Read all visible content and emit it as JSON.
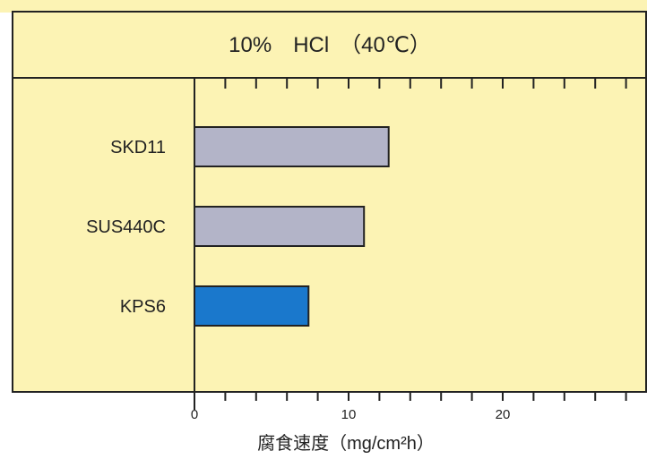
{
  "chart_data": {
    "type": "bar",
    "orientation": "horizontal",
    "title": "10%　HCl　（40℃）",
    "categories": [
      "SKD11",
      "SUS440C",
      "KPS6"
    ],
    "values": [
      12.6,
      11.0,
      7.4
    ],
    "xlabel": "腐食速度（mg/cm²h）",
    "ylabel": "",
    "xlim": [
      0,
      29
    ],
    "xticks": [
      0,
      10,
      20
    ],
    "minor_tick_step": 2,
    "grid": false,
    "legend": "none",
    "colors": {
      "background": "#fcf3b4",
      "frame": "#222222",
      "bar_default": "#b3b4c8",
      "bar_highlight": "#1a78cc",
      "highlight_category": "KPS6"
    }
  }
}
